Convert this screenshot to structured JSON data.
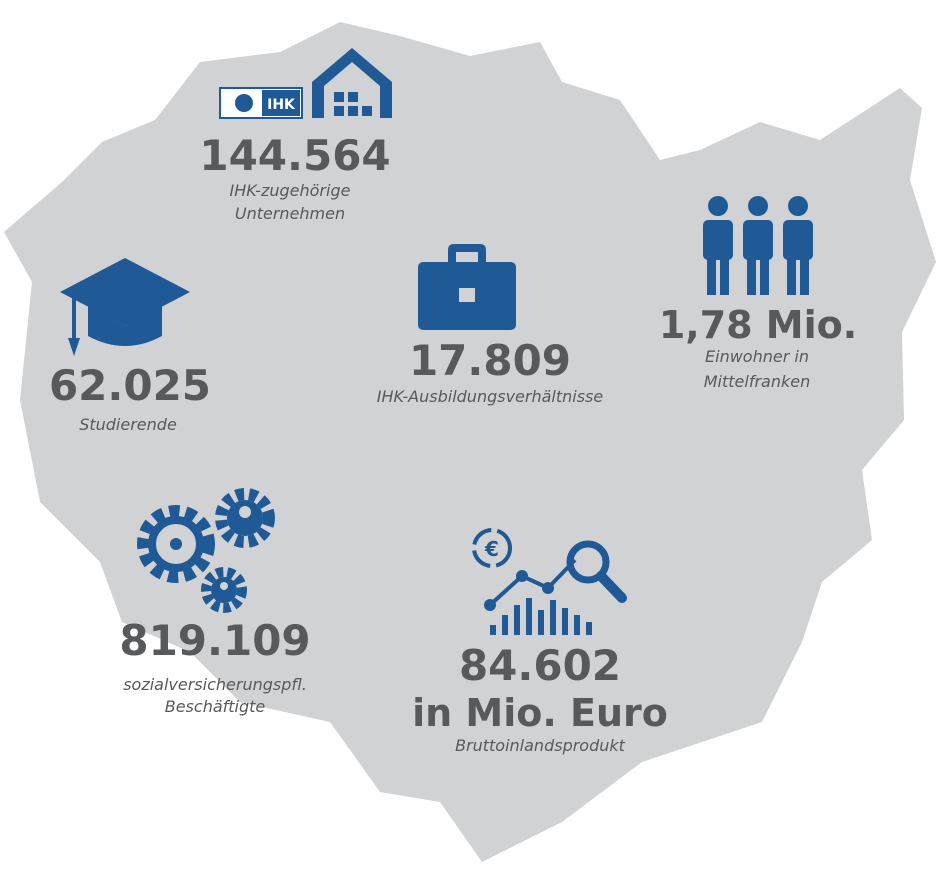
{
  "logo": "IHK",
  "stats": [
    {
      "value": "144.564",
      "label": [
        "IHK-zugehörige",
        "Unternehmen"
      ]
    },
    {
      "value": "62.025",
      "label": [
        "Studierende"
      ]
    },
    {
      "value": "17.809",
      "label": [
        "IHK-Ausbildungsverhältnisse"
      ]
    },
    {
      "value": "1,78 Mio.",
      "label": [
        "Einwohner in",
        "Mittelfranken"
      ]
    },
    {
      "value": "819.109",
      "label": [
        "sozialversicherungspfl.",
        "Beschäftigte"
      ]
    },
    {
      "value": "84.602",
      "unit": "in Mio. Euro",
      "label": [
        "Bruttoinlandsprodukt"
      ]
    }
  ]
}
